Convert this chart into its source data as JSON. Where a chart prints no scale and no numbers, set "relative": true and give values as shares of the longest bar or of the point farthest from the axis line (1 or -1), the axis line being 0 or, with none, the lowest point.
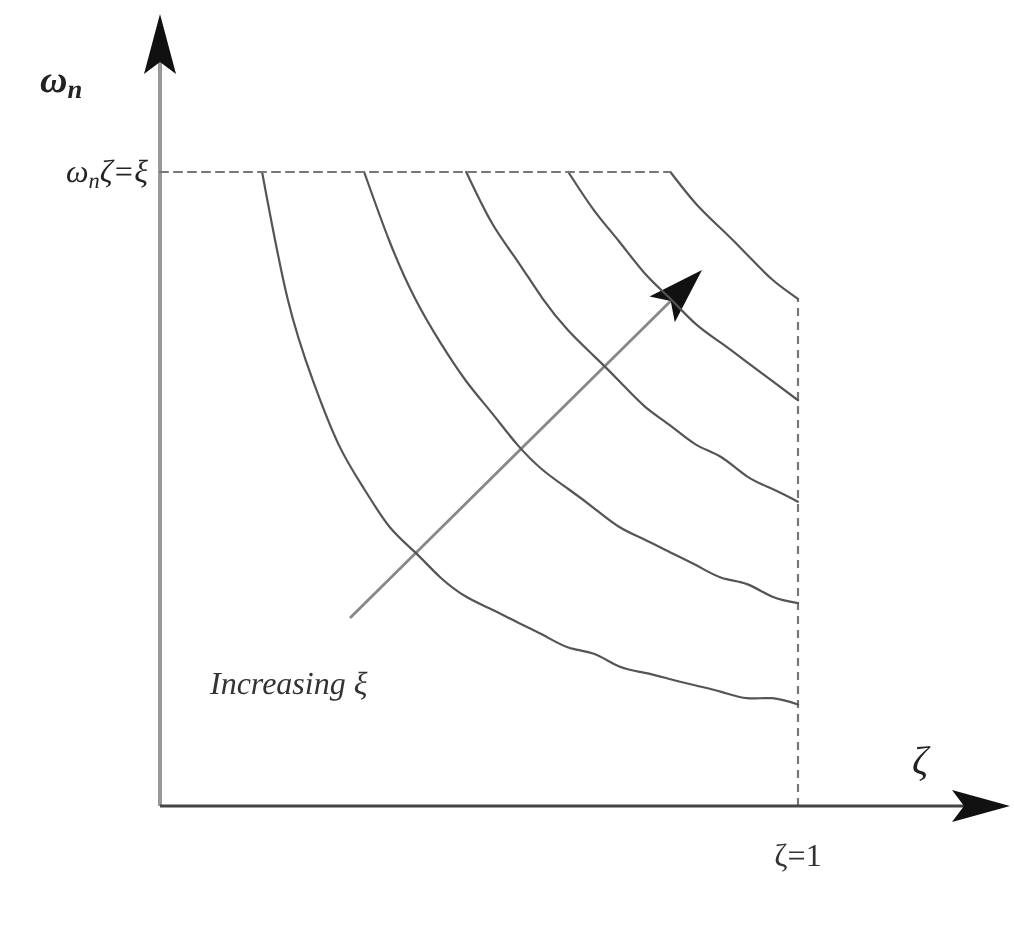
{
  "chart_data": {
    "type": "line",
    "relative": true,
    "line_style": "solid",
    "xlabel": "ζ",
    "ylabel": "ω$_{n}$",
    "categories": [
      null,
      null,
      null,
      null,
      null,
      null,
      null,
      null,
      null,
      null,
      null,
      null,
      null,
      null,
      null,
      null,
      null,
      null,
      null,
      null,
      null,
      null,
      null,
      null,
      null,
      null,
      null,
      null,
      null,
      null,
      null,
      null,
      null,
      null
    ],
    "annotations": [
      "ζ=1",
      "Increasing ξ"
    ],
    "series": [
      {
        "color": "#555555",
        "values": [
          null,
          null,
          null,
          null,
          1,
          0.8,
          0.67,
          0.57,
          0.5,
          0.44,
          0.4,
          0.36,
          0.33,
          0.31,
          0.29,
          0.27,
          0.25,
          0.24,
          0.22,
          0.21,
          0.2,
          0.19,
          0.18,
          0.17,
          0.17,
          0.16,
          null,
          null,
          null,
          null,
          null,
          null,
          null,
          null
        ]
      },
      {
        "color": "#555555",
        "values": [
          null,
          null,
          null,
          null,
          null,
          null,
          null,
          null,
          1,
          0.89,
          0.8,
          0.73,
          0.67,
          0.62,
          0.57,
          0.53,
          0.5,
          0.47,
          0.44,
          0.42,
          0.4,
          0.38,
          0.36,
          0.35,
          0.33,
          0.32,
          null,
          null,
          null,
          null,
          null,
          null,
          null,
          null
        ]
      },
      {
        "color": "#555555",
        "values": [
          null,
          null,
          null,
          null,
          null,
          null,
          null,
          null,
          null,
          null,
          null,
          null,
          1,
          0.92,
          0.86,
          0.8,
          0.75,
          0.71,
          0.67,
          0.63,
          0.6,
          0.57,
          0.55,
          0.52,
          0.5,
          0.48,
          null,
          null,
          null,
          null,
          null,
          null,
          null,
          null
        ]
      },
      {
        "color": "#555555",
        "values": [
          null,
          null,
          null,
          null,
          null,
          null,
          null,
          null,
          null,
          null,
          null,
          null,
          null,
          null,
          null,
          null,
          1,
          0.94,
          0.89,
          0.84,
          0.8,
          0.76,
          0.73,
          0.7,
          0.67,
          0.64,
          null,
          null,
          null,
          null,
          null,
          null,
          null,
          null
        ]
      },
      {
        "color": "#555555",
        "values": [
          null,
          null,
          null,
          null,
          null,
          null,
          null,
          null,
          null,
          null,
          null,
          null,
          null,
          null,
          null,
          null,
          null,
          null,
          null,
          null,
          1,
          0.95,
          0.91,
          0.87,
          0.83,
          0.8,
          null,
          null,
          null,
          null,
          null,
          null,
          null,
          null
        ]
      },
      {
        "name": "ω$_{n}$ζ=ξ",
        "color": "#777777",
        "line_style": "dashed",
        "values": [
          1,
          1,
          1,
          1,
          1,
          1,
          1,
          1,
          1,
          1,
          1,
          1,
          1,
          1,
          1,
          1,
          1,
          1,
          1,
          1,
          1,
          null,
          null,
          null,
          null,
          null,
          null,
          null,
          null,
          null,
          null,
          null,
          null,
          null
        ]
      }
    ]
  }
}
